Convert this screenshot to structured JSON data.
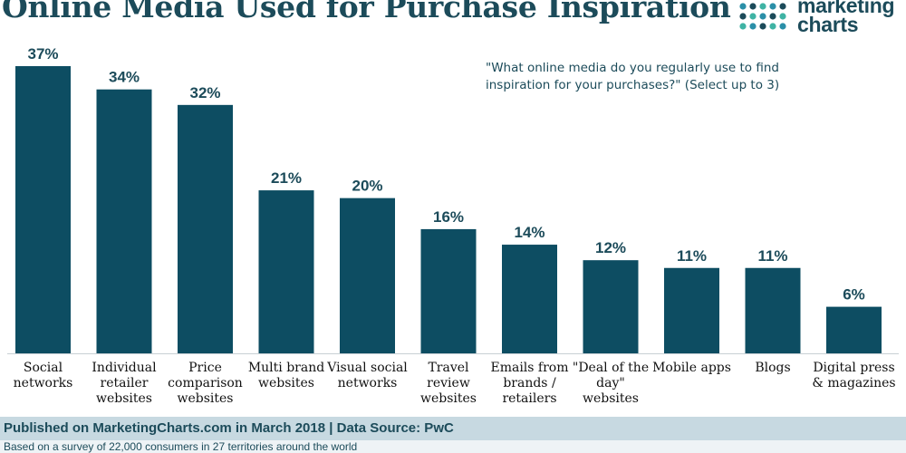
{
  "header": {
    "title": "Online Media Used for Purchase Inspiration",
    "logo_line1": "marketing",
    "logo_line2": "charts"
  },
  "question": "\"What online media do you regularly use to find inspiration for your purchases?\" (Select up to 3)",
  "footer": {
    "published": "Published on MarketingCharts.com in March 2018 | Data Source: PwC",
    "note": "Based on a survey of 22,000 consumers in 27 territories around the world"
  },
  "colors": {
    "bar": "#0d4d62",
    "text": "#1c4b5a",
    "logo_dots": [
      "#3fb3a4",
      "#2a8fa8",
      "#1c4b5a"
    ]
  },
  "chart_data": {
    "type": "bar",
    "title": "Online Media Used for Purchase Inspiration",
    "categories": [
      [
        "Social",
        "networks"
      ],
      [
        "Individual",
        "retailer",
        "websites"
      ],
      [
        "Price",
        "comparison",
        "websites"
      ],
      [
        "Multi brand",
        "websites"
      ],
      [
        "Visual social",
        "networks"
      ],
      [
        "Travel",
        "review",
        "websites"
      ],
      [
        "Emails from",
        "brands /",
        "retailers"
      ],
      [
        "\"Deal of the",
        "day\"",
        "websites"
      ],
      [
        "Mobile apps"
      ],
      [
        "Blogs"
      ],
      [
        "Digital press",
        "& magazines"
      ]
    ],
    "values": [
      37,
      34,
      32,
      21,
      20,
      16,
      14,
      12,
      11,
      11,
      6
    ],
    "value_suffix": "%",
    "ylim": [
      0,
      37
    ],
    "grid": false,
    "legend": "none"
  }
}
